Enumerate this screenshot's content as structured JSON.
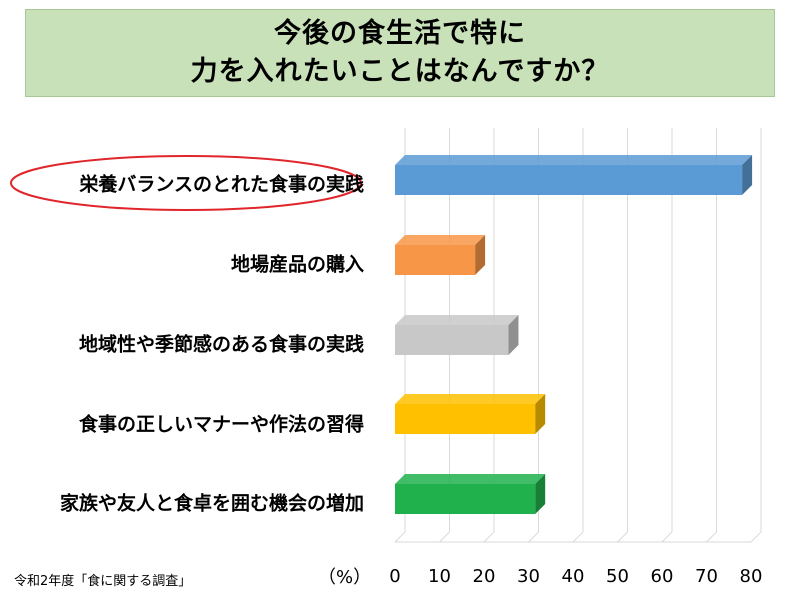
{
  "chart_data": {
    "type": "bar",
    "orientation": "horizontal",
    "title_lines": [
      "今後の食生活で特に",
      "力を入れたいことはなんですか？"
    ],
    "categories": [
      "栄養バランスのとれた食事の実践",
      "地場産品の購入",
      "地域性や季節感のある食事の実践",
      "食事の正しいマナーや作法の習得",
      "家族や友人と食卓を囲む機会の増加"
    ],
    "values": [
      78,
      18,
      25.5,
      31.5,
      31.5
    ],
    "colors": [
      "#5b9bd5",
      "#f79646",
      "#c8c8c8",
      "#ffc000",
      "#21b14c"
    ],
    "highlighted_category_index": 0,
    "highlight_color": "#e0262b",
    "xlim": [
      0,
      80
    ],
    "x_ticks": [
      "0",
      "10",
      "20",
      "30",
      "40",
      "50",
      "60",
      "70",
      "80"
    ],
    "x_unit": "（%）",
    "grid": true,
    "source": "令和2年度「食に関する調査」"
  }
}
